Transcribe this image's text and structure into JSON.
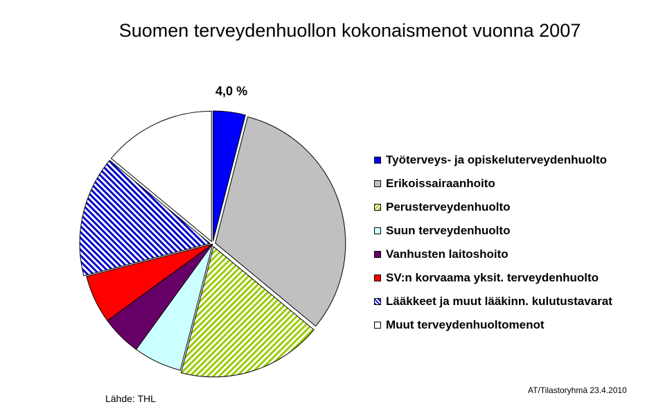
{
  "chart_data": {
    "type": "pie",
    "title": "Suomen terveydenhuollon kokonaismenot vuonna 2007",
    "legend_position": "right",
    "slices": [
      {
        "label": "Työterveys- ja opiskeluterveydenhuolto",
        "value": 4.0,
        "color": "#0000ff",
        "pattern": "solid",
        "data_label": "4,0 %",
        "exploded": true
      },
      {
        "label": "Erikoissairaanhoito",
        "value": 32.0,
        "color": "#c0c0c0",
        "pattern": "solid",
        "data_label": "",
        "exploded": true
      },
      {
        "label": "Perusterveydenhuolto",
        "value": 18.0,
        "color": "#99cc00",
        "pattern": "diagonal-stripes",
        "data_label": "",
        "exploded": true
      },
      {
        "label": "Suun terveydenhuolto",
        "value": 6.0,
        "color": "#ccffff",
        "pattern": "solid",
        "data_label": "",
        "exploded": false
      },
      {
        "label": "Vanhusten laitoshoito",
        "value": 5.0,
        "color": "#660066",
        "pattern": "solid",
        "data_label": "",
        "exploded": false
      },
      {
        "label": "SV:n korvaama yksit. terveydenhuolto",
        "value": 6.0,
        "color": "#ff0000",
        "pattern": "solid",
        "data_label": "",
        "exploded": false
      },
      {
        "label": "Lääkkeet ja muut lääkinn. kulutustavarat",
        "value": 15.0,
        "color": "#0000cc",
        "pattern": "diagonal-stripes-reverse",
        "data_label": "",
        "exploded": true
      },
      {
        "label": "Muut terveydenhuoltomenot",
        "value": 14.0,
        "color": "#ffffff",
        "pattern": "solid",
        "data_label": "",
        "exploded": true
      }
    ]
  },
  "footer": {
    "source": "Lähde: THL",
    "credit": "AT/Tilastoryhmä 23.4.2010"
  }
}
